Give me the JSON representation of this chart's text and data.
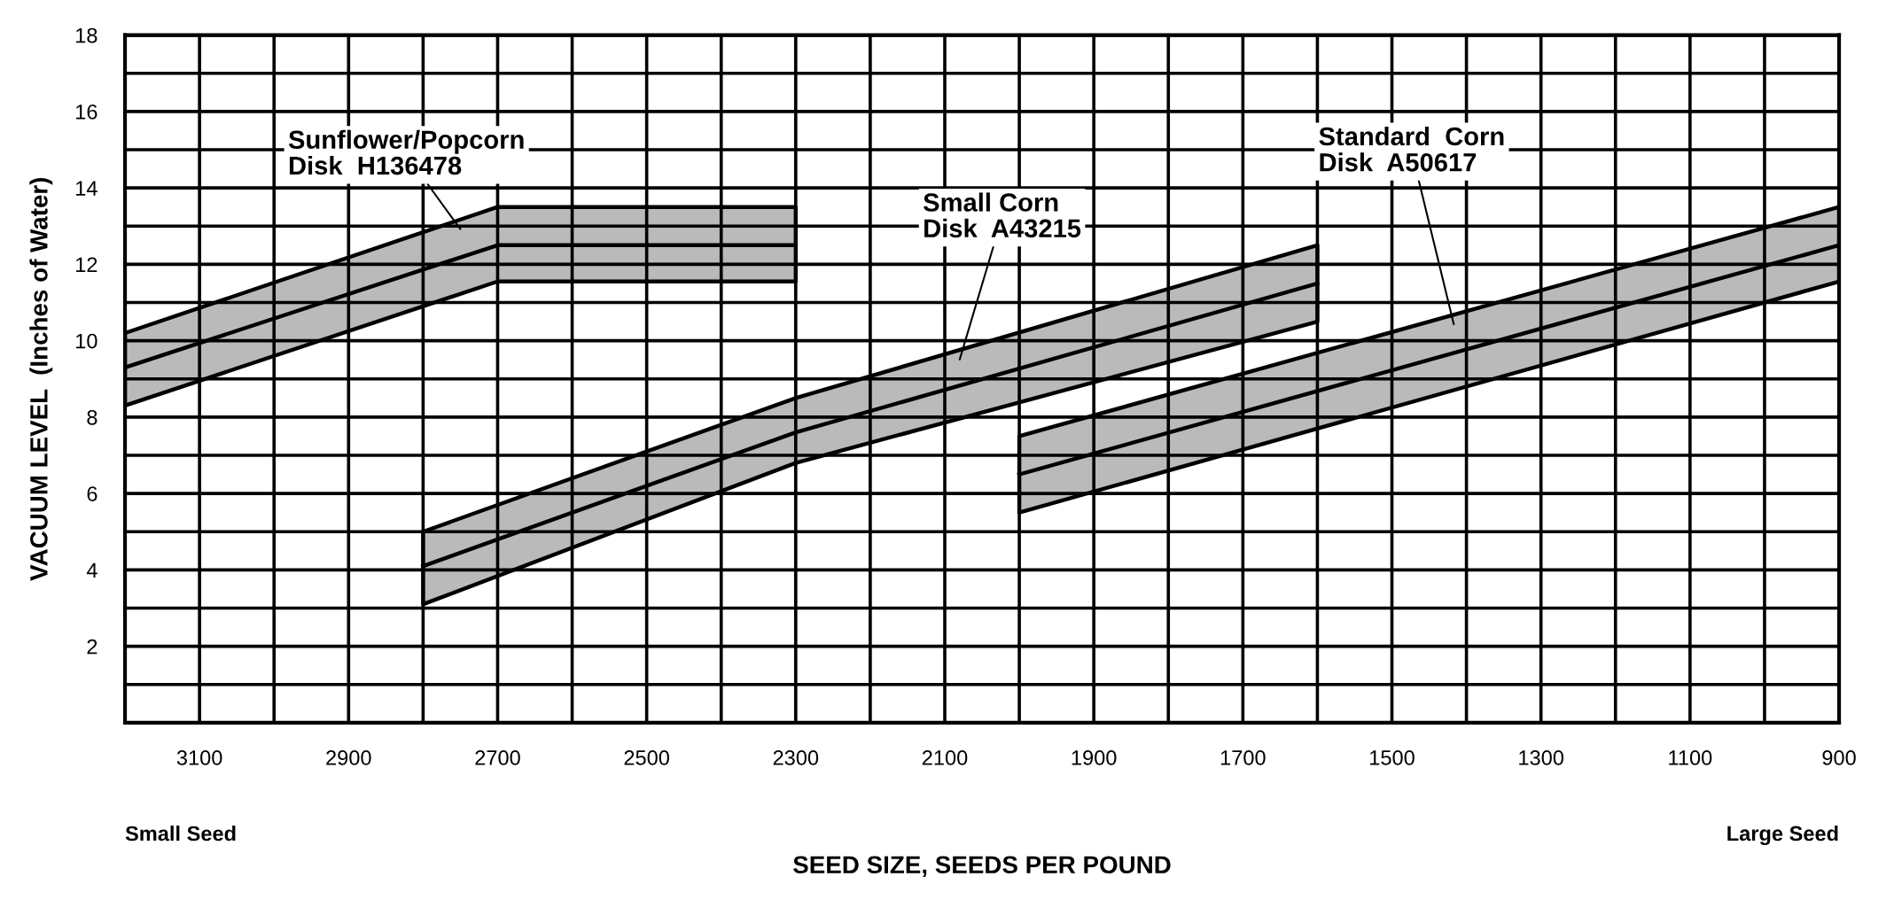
{
  "chart_data": {
    "type": "line",
    "xlabel": "SEED SIZE, SEEDS PER POUND",
    "ylabel": "VACUUM LEVEL  (Inches of Water)",
    "annotations": [
      "Small Seed",
      "Large Seed"
    ],
    "series": [
      {
        "name": "Sunflower/Popcorn\nDisk  H136478",
        "color": "#000000",
        "x": [
          3200,
          2700,
          2300
        ],
        "values": [
          9.3,
          12.5,
          12.5
        ],
        "lower": [
          8.3,
          11.55,
          11.55
        ],
        "upper": [
          10.2,
          13.5,
          13.5
        ]
      },
      {
        "name": "Small Corn\nDisk  A43215",
        "color": "#000000",
        "x": [
          2800,
          2300,
          1600
        ],
        "values": [
          4.1,
          7.6,
          11.5
        ],
        "lower": [
          3.1,
          6.8,
          10.5
        ],
        "upper": [
          5.0,
          8.5,
          12.5
        ]
      },
      {
        "name": "Standard  Corn\nDisk  A50617",
        "color": "#000000",
        "x": [
          2000,
          900
        ],
        "values": [
          6.5,
          12.5
        ],
        "lower": [
          5.5,
          11.55
        ],
        "upper": [
          7.5,
          13.5
        ]
      }
    ],
    "xlim": [
      3200,
      900
    ],
    "xticks": [
      {
        "value": 3200,
        "label": null
      },
      3100,
      {
        "value": 3000,
        "label": null
      },
      2900,
      {
        "value": 2800,
        "label": null
      },
      2700,
      {
        "value": 2600,
        "label": null
      },
      2500,
      {
        "value": 2400,
        "label": null
      },
      2300,
      {
        "value": 2200,
        "label": null
      },
      2100,
      {
        "value": 2000,
        "label": null
      },
      1900,
      {
        "value": 1800,
        "label": null
      },
      1700,
      {
        "value": 1600,
        "label": null
      },
      1500,
      {
        "value": 1400,
        "label": null
      },
      1300,
      {
        "value": 1200,
        "label": null
      },
      1100,
      {
        "value": 1000,
        "label": null
      },
      900
    ],
    "ylim": [
      0,
      18
    ],
    "yticks": [
      {
        "value": 0,
        "label": null
      },
      {
        "value": 1,
        "label": null
      },
      2,
      {
        "value": 3,
        "label": null
      },
      4,
      {
        "value": 5,
        "label": null
      },
      6,
      {
        "value": 7,
        "label": null
      },
      8,
      {
        "value": 9,
        "label": null
      },
      10,
      {
        "value": 11,
        "label": null
      },
      12,
      {
        "value": 13,
        "label": null
      },
      14,
      {
        "value": 15,
        "label": null
      },
      16,
      {
        "value": 17,
        "label": null
      },
      18
    ],
    "grid": true,
    "line_style": "solid",
    "marker": "none"
  }
}
